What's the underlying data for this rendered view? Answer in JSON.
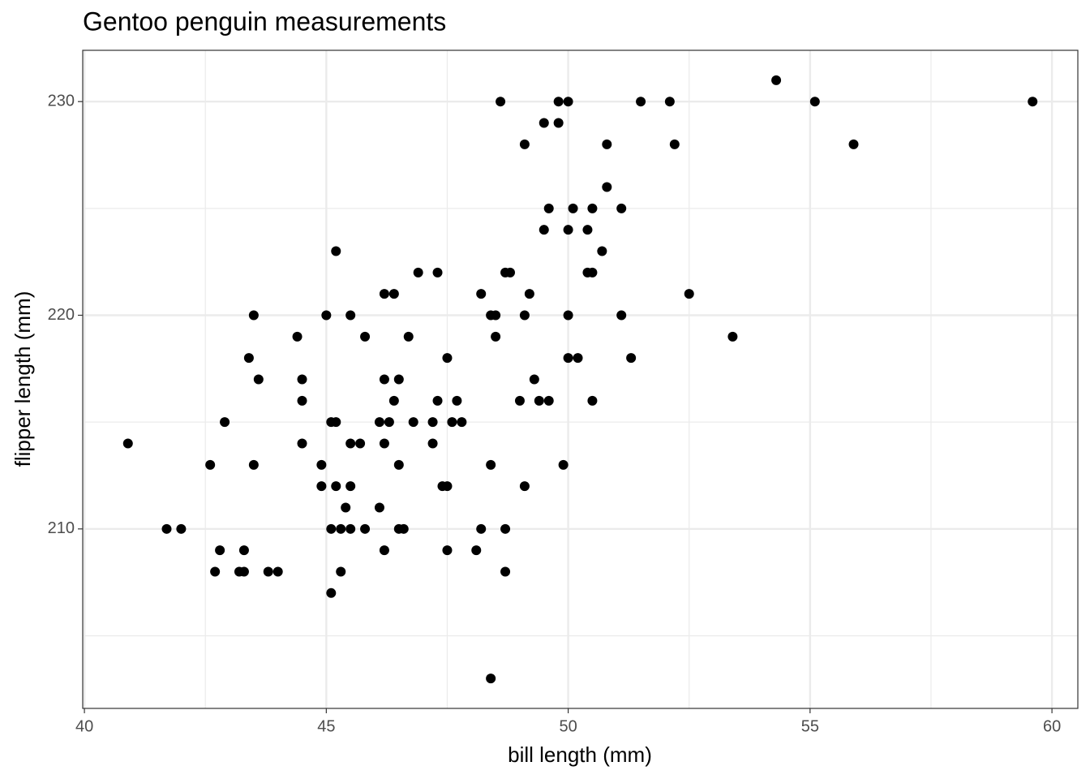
{
  "chart_data": {
    "type": "scatter",
    "title": "Gentoo penguin measurements",
    "x_label": "bill length (mm)",
    "y_label": "flipper length (mm)",
    "color": "#000000",
    "grid": true,
    "xlim": [
      39.965,
      60.535
    ],
    "ylim": [
      201.6,
      232.4
    ],
    "xticks": [
      40,
      45,
      50,
      55,
      60
    ],
    "yticks": [
      210,
      220,
      230
    ],
    "xminor": [
      42.5,
      47.5,
      52.5,
      57.5
    ],
    "yminor": [
      205,
      215,
      225
    ],
    "x": [
      54.3,
      48.6,
      49.8,
      50.0,
      51.5,
      52.1,
      55.1,
      59.6,
      49.5,
      49.8,
      49.1,
      50.8,
      52.2,
      55.9,
      50.8,
      49.6,
      50.1,
      50.5,
      51.1,
      49.5,
      50.0,
      50.4,
      45.2,
      50.7,
      46.9,
      47.3,
      48.7,
      48.8,
      50.4,
      50.5,
      46.2,
      46.4,
      48.2,
      49.2,
      52.5,
      43.5,
      45.0,
      45.5,
      48.4,
      48.5,
      49.1,
      50.0,
      51.1,
      44.4,
      45.8,
      46.7,
      48.5,
      53.4,
      43.4,
      47.5,
      50.0,
      50.2,
      51.3,
      43.6,
      44.5,
      46.2,
      46.5,
      49.3,
      44.5,
      46.4,
      47.3,
      47.7,
      49.0,
      49.4,
      49.6,
      50.5,
      42.9,
      45.1,
      45.2,
      46.1,
      46.3,
      46.8,
      47.2,
      47.6,
      47.8,
      40.9,
      44.5,
      45.5,
      45.7,
      46.2,
      47.2,
      42.6,
      43.5,
      44.9,
      46.5,
      48.4,
      49.9,
      44.9,
      45.2,
      45.5,
      47.4,
      47.5,
      49.1,
      45.4,
      46.1,
      41.7,
      42.0,
      45.1,
      45.3,
      45.5,
      45.8,
      46.5,
      46.6,
      48.2,
      48.7,
      42.8,
      43.3,
      46.2,
      47.5,
      48.1,
      42.7,
      43.2,
      43.3,
      43.8,
      44.0,
      45.3,
      48.7,
      45.1,
      48.4
    ],
    "values": [
      231,
      230,
      230,
      230,
      230,
      230,
      230,
      230,
      229,
      229,
      228,
      228,
      228,
      228,
      226,
      225,
      225,
      225,
      225,
      224,
      224,
      224,
      223,
      223,
      222,
      222,
      222,
      222,
      222,
      222,
      221,
      221,
      221,
      221,
      221,
      220,
      220,
      220,
      220,
      220,
      220,
      220,
      220,
      219,
      219,
      219,
      219,
      219,
      218,
      218,
      218,
      218,
      218,
      217,
      217,
      217,
      217,
      217,
      216,
      216,
      216,
      216,
      216,
      216,
      216,
      216,
      215,
      215,
      215,
      215,
      215,
      215,
      215,
      215,
      215,
      214,
      214,
      214,
      214,
      214,
      214,
      213,
      213,
      213,
      213,
      213,
      213,
      212,
      212,
      212,
      212,
      212,
      212,
      211,
      211,
      210,
      210,
      210,
      210,
      210,
      210,
      210,
      210,
      210,
      210,
      209,
      209,
      209,
      209,
      209,
      208,
      208,
      208,
      208,
      208,
      208,
      208,
      207,
      203
    ]
  }
}
